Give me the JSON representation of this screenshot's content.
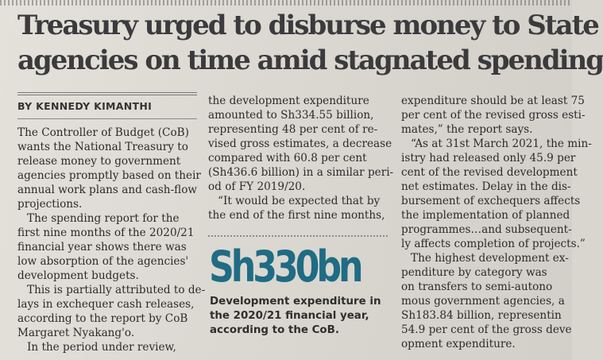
{
  "article": {
    "headline_lines": [
      "Treasury urged to disburse money to State",
      "agencies on time amid stagnated spending"
    ],
    "byline": "BY KENNEDY KIMANTHI",
    "columns": [
      [
        "The Controller of Budget (CoB)",
        "wants the National Treasury to",
        "release money to government",
        "agencies promptly based on their",
        "annual work plans and cash-flow",
        "projections.",
        "The spending report for the",
        "first nine months of the 2020/21",
        "financial year shows there was",
        "low absorption of the agencies'",
        "development budgets.",
        "This is partially attributed to de-",
        "lays in exchequer cash releases,",
        "according to the report by CoB",
        "Margaret Nyakang'o.",
        "In the period under review,"
      ],
      [
        "the development expenditure",
        "amounted to Sh334.55 billion,",
        "representing 48 per cent of re-",
        "vised gross estimates, a decrease",
        "compared with 60.8 per cent",
        "(Sh436.6 billion) in a similar peri-",
        "od of FY 2019/20.",
        "“It would be expected that by",
        "the end of the first nine months,"
      ],
      [
        "expenditure should be at least 75",
        "per cent of the revised gross esti-",
        "mates,” the report says.",
        "“As at 31st March 2021, the min-",
        "istry had released only 45.9 per",
        "cent of the revised development",
        "net estimates. Delay in the dis-",
        "bursement of exchequers affects",
        "the implementation of planned",
        "programmes…and subsequent-",
        "ly affects completion of projects.”",
        "The highest development ex-",
        "penditure by category was",
        "on transfers to semi-autono",
        "mous government agencies, a",
        "Sh183.84 billion, representin",
        "54.9 per cent of the gross deve",
        "opment expenditure."
      ]
    ],
    "pullout": {
      "figure": "Sh330bn",
      "caption_lines": [
        "Development expenditure in",
        "the 2020/21 financial year,",
        "according to the CoB."
      ]
    },
    "colors": {
      "figure": "#1f6c84",
      "text": "#2b2b2b",
      "headline": "#3b3b3e"
    }
  }
}
